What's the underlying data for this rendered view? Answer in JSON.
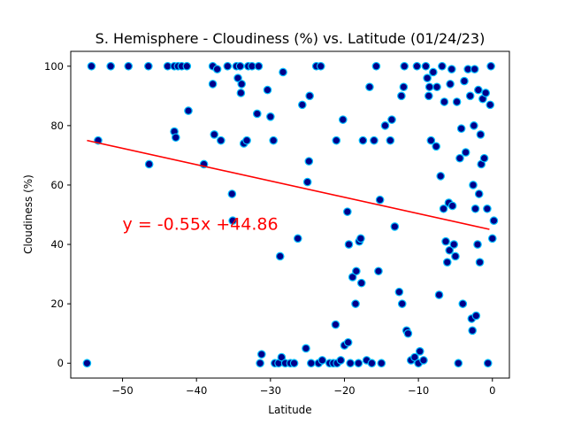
{
  "chart_data": {
    "type": "scatter",
    "title": "S. Hemisphere - Cloudiness (%) vs. Latitude (01/24/23)",
    "xlabel": "Latitude",
    "ylabel": "Cloudiness (%)",
    "xlim": [
      -57,
      2.3
    ],
    "ylim": [
      -5,
      105
    ],
    "xticks": [
      -50,
      -40,
      -30,
      -20,
      -10,
      0
    ],
    "yticks": [
      0,
      20,
      40,
      60,
      80,
      100
    ],
    "xtick_labels": [
      "−50",
      "−40",
      "−30",
      "−20",
      "−10",
      "0"
    ],
    "ytick_labels": [
      "0",
      "20",
      "40",
      "60",
      "80",
      "100"
    ],
    "grid": false,
    "colors": {
      "point_fill": "#00008b",
      "point_edge": "#00bfff",
      "line": "#ff0000",
      "annotation": "#ff0000"
    },
    "regression": {
      "slope": -0.55,
      "intercept": 44.86,
      "x_range": [
        -54.8,
        -0.4
      ],
      "equation": "y = -0.55x +44.86",
      "label_at": [
        -50,
        45
      ]
    },
    "points": [
      [
        -54.8,
        0
      ],
      [
        -54.2,
        100
      ],
      [
        -53.3,
        75
      ],
      [
        -51.6,
        100
      ],
      [
        -49.2,
        100
      ],
      [
        -46.5,
        100
      ],
      [
        -46.4,
        67
      ],
      [
        -43.9,
        100
      ],
      [
        -43.0,
        100
      ],
      [
        -43.0,
        78
      ],
      [
        -42.8,
        76
      ],
      [
        -42.5,
        100
      ],
      [
        -42.0,
        100
      ],
      [
        -41.3,
        100
      ],
      [
        -41.1,
        85
      ],
      [
        -39.0,
        67
      ],
      [
        -37.8,
        100
      ],
      [
        -37.8,
        94
      ],
      [
        -37.6,
        77
      ],
      [
        -37.2,
        99
      ],
      [
        -36.7,
        75
      ],
      [
        -35.8,
        100
      ],
      [
        -35.2,
        57
      ],
      [
        -35.1,
        48
      ],
      [
        -34.6,
        100
      ],
      [
        -34.4,
        96
      ],
      [
        -34.1,
        100
      ],
      [
        -34.0,
        91
      ],
      [
        -33.9,
        94
      ],
      [
        -33.6,
        74
      ],
      [
        -33.2,
        75
      ],
      [
        -33.0,
        100
      ],
      [
        -32.5,
        100
      ],
      [
        -31.8,
        84
      ],
      [
        -31.6,
        100
      ],
      [
        -31.4,
        0
      ],
      [
        -31.2,
        3
      ],
      [
        -30.4,
        92
      ],
      [
        -30.0,
        83
      ],
      [
        -29.6,
        75
      ],
      [
        -29.4,
        0
      ],
      [
        -28.9,
        0
      ],
      [
        -28.7,
        36
      ],
      [
        -28.5,
        2
      ],
      [
        -28.3,
        98
      ],
      [
        -28.0,
        0
      ],
      [
        -27.3,
        0
      ],
      [
        -26.8,
        0
      ],
      [
        -26.3,
        42
      ],
      [
        -25.7,
        87
      ],
      [
        -25.2,
        5
      ],
      [
        -25.0,
        61
      ],
      [
        -24.8,
        68
      ],
      [
        -24.7,
        90
      ],
      [
        -24.5,
        0
      ],
      [
        -23.8,
        100
      ],
      [
        -23.5,
        0
      ],
      [
        -23.2,
        100
      ],
      [
        -23.0,
        1
      ],
      [
        -22.0,
        0
      ],
      [
        -21.5,
        0
      ],
      [
        -21.2,
        13
      ],
      [
        -21.1,
        75
      ],
      [
        -21.0,
        0
      ],
      [
        -20.5,
        1
      ],
      [
        -20.2,
        82
      ],
      [
        -20.0,
        6
      ],
      [
        -19.6,
        51
      ],
      [
        -19.5,
        7
      ],
      [
        -19.4,
        40
      ],
      [
        -19.2,
        0
      ],
      [
        -18.9,
        29
      ],
      [
        -18.5,
        20
      ],
      [
        -18.4,
        31
      ],
      [
        -18.1,
        0
      ],
      [
        -18.0,
        41
      ],
      [
        -17.8,
        42
      ],
      [
        -17.7,
        27
      ],
      [
        -17.5,
        75
      ],
      [
        -17.0,
        1
      ],
      [
        -16.6,
        93
      ],
      [
        -16.3,
        0
      ],
      [
        -16.0,
        75
      ],
      [
        -15.7,
        100
      ],
      [
        -15.4,
        31
      ],
      [
        -15.2,
        55
      ],
      [
        -15.0,
        0
      ],
      [
        -14.5,
        80
      ],
      [
        -13.8,
        75
      ],
      [
        -13.6,
        82
      ],
      [
        -13.2,
        46
      ],
      [
        -12.6,
        24
      ],
      [
        -12.3,
        90
      ],
      [
        -12.2,
        20
      ],
      [
        -12.0,
        93
      ],
      [
        -11.9,
        100
      ],
      [
        -11.6,
        11
      ],
      [
        -11.4,
        10
      ],
      [
        -11.0,
        1
      ],
      [
        -10.5,
        2
      ],
      [
        -10.2,
        100
      ],
      [
        -10.0,
        0
      ],
      [
        -9.8,
        4
      ],
      [
        -9.3,
        1
      ],
      [
        -9.0,
        100
      ],
      [
        -8.8,
        96
      ],
      [
        -8.6,
        90
      ],
      [
        -8.5,
        93
      ],
      [
        -8.3,
        75
      ],
      [
        -8.0,
        98
      ],
      [
        -7.6,
        73
      ],
      [
        -7.5,
        93
      ],
      [
        -7.2,
        23
      ],
      [
        -7.0,
        63
      ],
      [
        -6.8,
        100
      ],
      [
        -6.6,
        52
      ],
      [
        -6.5,
        88
      ],
      [
        -6.3,
        41
      ],
      [
        -6.1,
        34
      ],
      [
        -5.9,
        54
      ],
      [
        -5.8,
        38
      ],
      [
        -5.7,
        94
      ],
      [
        -5.5,
        99
      ],
      [
        -5.4,
        53
      ],
      [
        -5.2,
        40
      ],
      [
        -5.0,
        36
      ],
      [
        -4.8,
        88
      ],
      [
        -4.6,
        0
      ],
      [
        -4.4,
        69
      ],
      [
        -4.2,
        79
      ],
      [
        -4.0,
        20
      ],
      [
        -3.8,
        95
      ],
      [
        -3.6,
        71
      ],
      [
        -3.3,
        99
      ],
      [
        -3.0,
        90
      ],
      [
        -2.8,
        15
      ],
      [
        -2.7,
        11
      ],
      [
        -2.6,
        60
      ],
      [
        -2.5,
        80
      ],
      [
        -2.4,
        99
      ],
      [
        -2.3,
        52
      ],
      [
        -2.2,
        16
      ],
      [
        -2.0,
        40
      ],
      [
        -1.9,
        92
      ],
      [
        -1.8,
        57
      ],
      [
        -1.7,
        34
      ],
      [
        -1.6,
        77
      ],
      [
        -1.5,
        67
      ],
      [
        -1.3,
        89
      ],
      [
        -1.1,
        69
      ],
      [
        -0.9,
        91
      ],
      [
        -0.7,
        52
      ],
      [
        -0.6,
        0
      ],
      [
        -0.3,
        87
      ],
      [
        -0.2,
        100
      ],
      [
        0.0,
        42
      ],
      [
        0.2,
        48
      ]
    ]
  }
}
